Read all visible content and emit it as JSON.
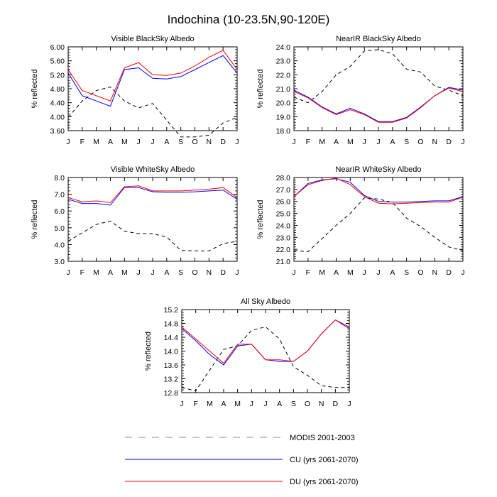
{
  "title": "Indochina (10-23.5N,90-120E)",
  "legend": [
    {
      "label": "MODIS 2001-2003",
      "color": "#000000",
      "style": "dashed"
    },
    {
      "label": "CU (yrs 2061-2070)",
      "color": "#0000ff",
      "style": "solid"
    },
    {
      "label": "DU (yrs 2061-2070)",
      "color": "#ff0000",
      "style": "solid"
    }
  ],
  "chart_data": [
    {
      "type": "line",
      "title": "Visible BlackSky Albedo",
      "ylabel": "% reflected",
      "categories": [
        "J",
        "F",
        "M",
        "A",
        "M",
        "J",
        "J",
        "A",
        "S",
        "O",
        "N",
        "D",
        "J"
      ],
      "ylim": [
        3.6,
        6.0
      ],
      "yticks": [
        3.6,
        4.0,
        4.4,
        4.8,
        5.2,
        5.6,
        6.0
      ],
      "ytick_labels": [
        "3.60",
        "4.00",
        "4.40",
        "4.80",
        "5.20",
        "5.60",
        "6.00"
      ],
      "series": [
        {
          "name": "MODIS 2001-2003",
          "values": [
            3.98,
            4.45,
            4.75,
            4.85,
            4.45,
            4.25,
            4.38,
            3.9,
            3.42,
            3.42,
            3.47,
            3.82,
            3.98
          ]
        },
        {
          "name": "CU (yrs 2061-2070)",
          "values": [
            5.25,
            4.6,
            4.45,
            4.3,
            5.35,
            5.4,
            5.1,
            5.08,
            5.15,
            5.35,
            5.55,
            5.75,
            5.25
          ]
        },
        {
          "name": "DU (yrs 2061-2070)",
          "values": [
            5.35,
            4.75,
            4.6,
            4.45,
            5.4,
            5.55,
            5.2,
            5.18,
            5.25,
            5.45,
            5.7,
            5.9,
            5.35
          ]
        }
      ]
    },
    {
      "type": "line",
      "title": "NearIR BlackSky Albedo",
      "ylabel": "% reflected",
      "categories": [
        "J",
        "F",
        "M",
        "A",
        "M",
        "J",
        "J",
        "A",
        "S",
        "O",
        "N",
        "D",
        "J"
      ],
      "ylim": [
        18.0,
        24.0
      ],
      "yticks": [
        18,
        19,
        20,
        21,
        22,
        23,
        24
      ],
      "ytick_labels": [
        "18.0",
        "19.0",
        "20.0",
        "21.0",
        "22.0",
        "23.0",
        "24.0"
      ],
      "series": [
        {
          "name": "MODIS 2001-2003",
          "values": [
            20.4,
            20.0,
            20.8,
            22.0,
            22.6,
            23.7,
            23.8,
            23.5,
            22.4,
            22.2,
            21.2,
            20.9,
            20.5
          ]
        },
        {
          "name": "CU (yrs 2061-2070)",
          "values": [
            20.9,
            20.4,
            19.7,
            19.2,
            19.6,
            19.2,
            18.65,
            18.65,
            18.95,
            19.7,
            20.5,
            21.1,
            20.9
          ]
        },
        {
          "name": "DU (yrs 2061-2070)",
          "values": [
            20.8,
            20.35,
            19.65,
            19.15,
            19.5,
            19.15,
            18.6,
            18.6,
            18.9,
            19.65,
            20.5,
            21.05,
            20.8
          ]
        }
      ]
    },
    {
      "type": "line",
      "title": "Visible WhiteSky Albedo",
      "ylabel": "% reflected",
      "categories": [
        "J",
        "F",
        "M",
        "A",
        "M",
        "J",
        "J",
        "A",
        "S",
        "O",
        "N",
        "D",
        "J"
      ],
      "ylim": [
        3.0,
        8.0
      ],
      "yticks": [
        3,
        4,
        5,
        6,
        7,
        8
      ],
      "ytick_labels": [
        "3.0",
        "4.0",
        "5.0",
        "6.0",
        "7.0",
        "8.0"
      ],
      "series": [
        {
          "name": "MODIS 2001-2003",
          "values": [
            4.2,
            4.7,
            5.2,
            5.4,
            4.8,
            4.65,
            4.65,
            4.45,
            3.65,
            3.62,
            3.62,
            4.05,
            4.2
          ]
        },
        {
          "name": "CU (yrs 2061-2070)",
          "values": [
            6.7,
            6.45,
            6.45,
            6.35,
            7.4,
            7.4,
            7.15,
            7.12,
            7.12,
            7.15,
            7.2,
            7.25,
            6.7
          ]
        },
        {
          "name": "DU (yrs 2061-2070)",
          "values": [
            6.8,
            6.55,
            6.6,
            6.5,
            7.45,
            7.5,
            7.2,
            7.2,
            7.2,
            7.25,
            7.3,
            7.4,
            6.8
          ]
        }
      ]
    },
    {
      "type": "line",
      "title": "NearIR WhiteSky Albedo",
      "ylabel": "% reflected",
      "categories": [
        "J",
        "F",
        "M",
        "A",
        "M",
        "J",
        "J",
        "A",
        "S",
        "O",
        "N",
        "D",
        "J"
      ],
      "ylim": [
        21.0,
        28.0
      ],
      "yticks": [
        21,
        22,
        23,
        24,
        25,
        26,
        27,
        28
      ],
      "ytick_labels": [
        "21.0",
        "22.0",
        "23.0",
        "24.0",
        "25.0",
        "26.0",
        "27.0",
        "28.0"
      ],
      "series": [
        {
          "name": "MODIS 2001-2003",
          "values": [
            21.9,
            21.8,
            22.9,
            24.0,
            25.0,
            26.3,
            26.2,
            25.9,
            24.6,
            23.9,
            23.0,
            22.2,
            21.9
          ]
        },
        {
          "name": "CU (yrs 2061-2070)",
          "values": [
            26.4,
            27.5,
            27.8,
            27.9,
            27.6,
            26.5,
            26.0,
            25.95,
            25.95,
            26.0,
            26.05,
            26.05,
            26.4
          ]
        },
        {
          "name": "DU (yrs 2061-2070)",
          "values": [
            26.4,
            27.4,
            27.75,
            27.95,
            27.4,
            26.4,
            25.85,
            25.8,
            25.85,
            25.9,
            25.95,
            25.95,
            26.35
          ]
        }
      ]
    },
    {
      "type": "line",
      "title": "All Sky Albedo",
      "ylabel": "% reflected",
      "categories": [
        "J",
        "F",
        "M",
        "A",
        "M",
        "J",
        "J",
        "A",
        "S",
        "O",
        "N",
        "D",
        "J"
      ],
      "ylim": [
        12.8,
        15.2
      ],
      "yticks": [
        12.8,
        13.2,
        13.6,
        14.0,
        14.4,
        14.8,
        15.2
      ],
      "ytick_labels": [
        "12.8",
        "13.2",
        "13.6",
        "14.0",
        "14.4",
        "14.8",
        "15.2"
      ],
      "series": [
        {
          "name": "MODIS 2001-2003",
          "values": [
            12.95,
            12.85,
            13.45,
            14.05,
            14.15,
            14.6,
            14.7,
            14.35,
            13.55,
            13.3,
            13.0,
            12.95,
            12.95
          ]
        },
        {
          "name": "CU (yrs 2061-2070)",
          "values": [
            14.65,
            14.3,
            13.9,
            13.6,
            14.15,
            14.2,
            13.75,
            13.7,
            13.7,
            14.0,
            14.5,
            14.9,
            14.65
          ]
        },
        {
          "name": "DU (yrs 2061-2070)",
          "values": [
            14.7,
            14.35,
            14.0,
            13.65,
            14.2,
            14.2,
            13.75,
            13.75,
            13.7,
            14.0,
            14.5,
            14.9,
            14.7
          ]
        }
      ]
    }
  ]
}
